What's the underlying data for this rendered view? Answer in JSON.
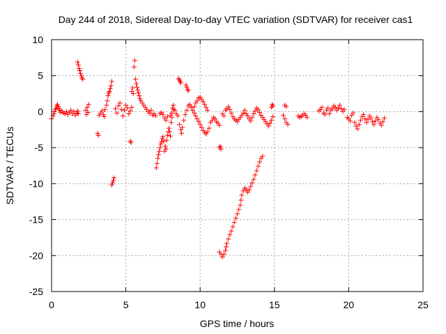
{
  "chart_data": {
    "type": "scatter",
    "title": "Day 244 of 2018, Sidereal Day-to-day VTEC variation (SDTVAR) for receiver cas1",
    "xlabel": "GPS time / hours",
    "ylabel": "SDTVAR / TECUs",
    "xlim": [
      0,
      25
    ],
    "ylim": [
      -25,
      10
    ],
    "xticks": [
      0,
      5,
      10,
      15,
      20,
      25
    ],
    "yticks": [
      -25,
      -20,
      -15,
      -10,
      -5,
      0,
      5,
      10
    ],
    "grid": true,
    "marker": "+",
    "color": "#ff0000",
    "series": [
      {
        "name": "cas1",
        "points": [
          [
            0.0,
            -1.0
          ],
          [
            0.1,
            -0.6
          ],
          [
            0.15,
            -0.3
          ],
          [
            0.2,
            0.0
          ],
          [
            0.25,
            0.3
          ],
          [
            0.3,
            0.5
          ],
          [
            0.35,
            0.8
          ],
          [
            0.4,
            1.0
          ],
          [
            0.45,
            0.7
          ],
          [
            0.5,
            0.4
          ],
          [
            0.55,
            0.2
          ],
          [
            0.6,
            -0.1
          ],
          [
            0.7,
            0.1
          ],
          [
            0.8,
            -0.2
          ],
          [
            0.9,
            -0.3
          ],
          [
            1.0,
            0.0
          ],
          [
            1.1,
            -0.4
          ],
          [
            1.2,
            -0.1
          ],
          [
            1.3,
            0.2
          ],
          [
            1.4,
            -0.3
          ],
          [
            1.5,
            0.0
          ],
          [
            1.6,
            -0.5
          ],
          [
            1.7,
            -0.2
          ],
          [
            1.75,
            0.1
          ],
          [
            1.8,
            -0.3
          ],
          [
            1.75,
            6.9
          ],
          [
            1.8,
            6.5
          ],
          [
            1.85,
            6.0
          ],
          [
            1.9,
            5.7
          ],
          [
            1.95,
            5.3
          ],
          [
            2.0,
            5.0
          ],
          [
            2.05,
            4.7
          ],
          [
            2.1,
            4.5
          ],
          [
            2.3,
            0.2
          ],
          [
            2.4,
            0.6
          ],
          [
            2.5,
            1.0
          ],
          [
            2.35,
            -0.4
          ],
          [
            2.45,
            -0.1
          ],
          [
            3.1,
            -3.0
          ],
          [
            3.15,
            -3.3
          ],
          [
            3.2,
            -0.5
          ],
          [
            3.3,
            -0.2
          ],
          [
            3.4,
            0.1
          ],
          [
            3.5,
            -0.4
          ],
          [
            3.55,
            -0.7
          ],
          [
            3.6,
            0.3
          ],
          [
            3.7,
            0.9
          ],
          [
            3.75,
            1.5
          ],
          [
            3.8,
            2.2
          ],
          [
            3.85,
            2.6
          ],
          [
            3.9,
            2.8
          ],
          [
            3.95,
            3.2
          ],
          [
            4.0,
            3.6
          ],
          [
            4.05,
            4.2
          ],
          [
            4.05,
            -10.2
          ],
          [
            4.1,
            -9.9
          ],
          [
            4.15,
            -9.6
          ],
          [
            4.2,
            -9.2
          ],
          [
            4.3,
            0.4
          ],
          [
            4.4,
            -0.2
          ],
          [
            4.5,
            0.8
          ],
          [
            4.6,
            1.2
          ],
          [
            4.7,
            0.3
          ],
          [
            4.8,
            -0.6
          ],
          [
            4.9,
            0.2
          ],
          [
            5.0,
            0.9
          ],
          [
            5.1,
            0.5
          ],
          [
            5.2,
            -0.3
          ],
          [
            5.3,
            0.1
          ],
          [
            5.4,
            0.6
          ],
          [
            5.3,
            -4.1
          ],
          [
            5.35,
            -4.3
          ],
          [
            5.4,
            2.8
          ],
          [
            5.45,
            3.3
          ],
          [
            5.5,
            2.5
          ],
          [
            5.55,
            6.2
          ],
          [
            5.6,
            7.1
          ],
          [
            5.65,
            4.5
          ],
          [
            5.7,
            3.9
          ],
          [
            5.75,
            3.4
          ],
          [
            5.8,
            3.0
          ],
          [
            5.85,
            2.6
          ],
          [
            5.9,
            2.2
          ],
          [
            5.95,
            1.8
          ],
          [
            6.0,
            1.5
          ],
          [
            6.1,
            1.2
          ],
          [
            6.2,
            0.9
          ],
          [
            6.3,
            0.6
          ],
          [
            6.4,
            0.3
          ],
          [
            6.5,
            0.0
          ],
          [
            6.6,
            -0.2
          ],
          [
            6.7,
            0.2
          ],
          [
            6.8,
            -0.5
          ],
          [
            6.9,
            -0.3
          ],
          [
            7.0,
            -0.6
          ],
          [
            7.05,
            -7.8
          ],
          [
            7.1,
            -7.2
          ],
          [
            7.15,
            -6.5
          ],
          [
            7.2,
            -6.0
          ],
          [
            7.25,
            -5.5
          ],
          [
            7.3,
            -5.0
          ],
          [
            7.35,
            -4.5
          ],
          [
            7.4,
            -4.2
          ],
          [
            7.45,
            -3.8
          ],
          [
            7.5,
            -3.5
          ],
          [
            7.55,
            -4.1
          ],
          [
            7.6,
            -5.5
          ],
          [
            7.65,
            -4.8
          ],
          [
            7.7,
            -5.2
          ],
          [
            7.75,
            -4.0
          ],
          [
            7.8,
            -3.3
          ],
          [
            7.85,
            -2.8
          ],
          [
            7.9,
            -2.3
          ],
          [
            7.95,
            -2.8
          ],
          [
            8.0,
            -3.4
          ],
          [
            8.05,
            -1.5
          ],
          [
            8.1,
            -0.8
          ],
          [
            8.15,
            0.5
          ],
          [
            8.2,
            0.9
          ],
          [
            8.3,
            0.2
          ],
          [
            8.4,
            -0.3
          ],
          [
            8.5,
            -0.6
          ],
          [
            8.0,
            -0.5
          ],
          [
            8.1,
            -0.2
          ],
          [
            8.2,
            0.3
          ],
          [
            7.5,
            -0.4
          ],
          [
            7.6,
            -0.9
          ],
          [
            7.7,
            -1.2
          ],
          [
            7.8,
            -0.7
          ],
          [
            7.3,
            -0.3
          ],
          [
            7.4,
            -0.1
          ],
          [
            8.55,
            4.6
          ],
          [
            8.6,
            4.4
          ],
          [
            8.65,
            4.2
          ],
          [
            8.7,
            4.0
          ],
          [
            8.6,
            -1.8
          ],
          [
            8.7,
            -2.5
          ],
          [
            8.75,
            -3.0
          ],
          [
            8.8,
            -2.2
          ],
          [
            8.9,
            -1.2
          ],
          [
            9.0,
            -0.4
          ],
          [
            9.1,
            0.2
          ],
          [
            9.2,
            0.8
          ],
          [
            9.3,
            1.0
          ],
          [
            9.4,
            0.6
          ],
          [
            9.5,
            0.2
          ],
          [
            9.6,
            -0.2
          ],
          [
            9.7,
            -0.6
          ],
          [
            9.8,
            -1.0
          ],
          [
            9.9,
            -1.4
          ],
          [
            10.0,
            -1.8
          ],
          [
            10.1,
            -2.2
          ],
          [
            10.2,
            -2.6
          ],
          [
            10.3,
            -2.9
          ],
          [
            10.4,
            -3.1
          ],
          [
            10.5,
            -2.8
          ],
          [
            10.6,
            -2.3
          ],
          [
            10.7,
            -1.5
          ],
          [
            9.05,
            3.7
          ],
          [
            9.1,
            3.4
          ],
          [
            9.15,
            3.1
          ],
          [
            9.2,
            2.9
          ],
          [
            9.6,
            0.7
          ],
          [
            9.7,
            1.2
          ],
          [
            9.8,
            1.5
          ],
          [
            9.9,
            1.9
          ],
          [
            10.0,
            2.0
          ],
          [
            10.1,
            1.7
          ],
          [
            10.2,
            1.4
          ],
          [
            10.3,
            1.0
          ],
          [
            10.4,
            0.6
          ],
          [
            10.5,
            0.2
          ],
          [
            10.8,
            -1.2
          ],
          [
            10.9,
            -0.8
          ],
          [
            11.0,
            -1.0
          ],
          [
            11.1,
            -1.4
          ],
          [
            11.2,
            -1.6
          ],
          [
            11.3,
            -1.9
          ],
          [
            11.3,
            -5.0
          ],
          [
            11.35,
            -4.8
          ],
          [
            11.4,
            -5.2
          ],
          [
            11.3,
            -19.5
          ],
          [
            11.4,
            -19.8
          ],
          [
            11.5,
            -20.2
          ],
          [
            11.6,
            -19.8
          ],
          [
            11.7,
            -19.3
          ],
          [
            11.75,
            -18.8
          ],
          [
            11.8,
            -18.3
          ],
          [
            11.9,
            -17.7
          ],
          [
            12.0,
            -17.1
          ],
          [
            12.1,
            -16.6
          ],
          [
            12.2,
            -16.0
          ],
          [
            12.3,
            -15.4
          ],
          [
            12.4,
            -14.8
          ],
          [
            12.5,
            -14.2
          ],
          [
            12.6,
            -13.6
          ],
          [
            12.7,
            -13.0
          ],
          [
            12.75,
            -12.3
          ],
          [
            12.8,
            -11.6
          ],
          [
            12.9,
            -11.0
          ],
          [
            13.0,
            -10.6
          ],
          [
            13.1,
            -10.8
          ],
          [
            13.2,
            -11.2
          ],
          [
            13.3,
            -10.9
          ],
          [
            13.4,
            -10.4
          ],
          [
            13.5,
            -9.9
          ],
          [
            13.6,
            -9.4
          ],
          [
            13.7,
            -8.8
          ],
          [
            13.8,
            -8.2
          ],
          [
            13.9,
            -7.6
          ],
          [
            14.0,
            -7.0
          ],
          [
            14.1,
            -6.5
          ],
          [
            14.2,
            -6.2
          ],
          [
            11.5,
            -0.3
          ],
          [
            11.6,
            -0.6
          ],
          [
            11.7,
            0.2
          ],
          [
            11.8,
            0.4
          ],
          [
            11.9,
            0.7
          ],
          [
            12.0,
            0.3
          ],
          [
            12.1,
            -0.2
          ],
          [
            12.2,
            -0.7
          ],
          [
            12.3,
            -1.0
          ],
          [
            12.4,
            -1.2
          ],
          [
            12.5,
            -1.4
          ],
          [
            12.6,
            -1.1
          ],
          [
            12.7,
            -0.8
          ],
          [
            12.8,
            -0.5
          ],
          [
            12.9,
            -0.2
          ],
          [
            13.0,
            0.2
          ],
          [
            13.1,
            -0.3
          ],
          [
            13.2,
            -0.6
          ],
          [
            13.3,
            -1.0
          ],
          [
            13.4,
            -1.3
          ],
          [
            13.5,
            -0.8
          ],
          [
            13.6,
            -0.3
          ],
          [
            13.7,
            0.1
          ],
          [
            13.8,
            0.5
          ],
          [
            13.9,
            0.3
          ],
          [
            14.0,
            -0.1
          ],
          [
            14.1,
            -0.5
          ],
          [
            14.2,
            -0.8
          ],
          [
            14.3,
            -1.1
          ],
          [
            14.4,
            -1.4
          ],
          [
            14.5,
            -1.7
          ],
          [
            14.6,
            -2.0
          ],
          [
            14.7,
            -1.6
          ],
          [
            14.8,
            -1.2
          ],
          [
            14.9,
            -0.7
          ],
          [
            14.8,
            0.6
          ],
          [
            14.85,
            1.0
          ],
          [
            14.9,
            0.8
          ],
          [
            15.6,
            -0.5
          ],
          [
            15.7,
            -1.0
          ],
          [
            15.8,
            -1.5
          ],
          [
            15.9,
            -1.8
          ],
          [
            15.7,
            0.9
          ],
          [
            15.8,
            0.7
          ],
          [
            16.6,
            -0.6
          ],
          [
            16.7,
            -0.8
          ],
          [
            16.8,
            -0.7
          ],
          [
            16.9,
            -0.5
          ],
          [
            17.0,
            -0.3
          ],
          [
            17.1,
            -0.5
          ],
          [
            17.2,
            -0.8
          ],
          [
            18.0,
            0.1
          ],
          [
            18.1,
            0.3
          ],
          [
            18.2,
            0.6
          ],
          [
            18.3,
            -0.2
          ],
          [
            18.4,
            -0.4
          ],
          [
            18.5,
            0.2
          ],
          [
            18.6,
            0.5
          ],
          [
            18.7,
            -0.3
          ],
          [
            18.8,
            0.2
          ],
          [
            18.9,
            0.4
          ],
          [
            19.0,
            0.8
          ],
          [
            19.1,
            0.6
          ],
          [
            19.2,
            0.2
          ],
          [
            19.3,
            0.5
          ],
          [
            19.4,
            0.9
          ],
          [
            19.5,
            0.4
          ],
          [
            19.6,
            0.0
          ],
          [
            19.7,
            0.3
          ],
          [
            19.9,
            -0.8
          ],
          [
            20.0,
            -1.0
          ],
          [
            20.1,
            -1.3
          ],
          [
            20.2,
            -0.5
          ],
          [
            20.3,
            -0.2
          ],
          [
            20.4,
            -1.5
          ],
          [
            20.5,
            -2.0
          ],
          [
            20.6,
            -2.4
          ],
          [
            20.7,
            -1.8
          ],
          [
            20.8,
            -1.2
          ],
          [
            20.9,
            -0.7
          ],
          [
            21.0,
            -0.4
          ],
          [
            21.1,
            -1.0
          ],
          [
            21.2,
            -1.5
          ],
          [
            21.3,
            -1.1
          ],
          [
            21.4,
            -0.6
          ],
          [
            21.5,
            -0.9
          ],
          [
            21.6,
            -1.4
          ],
          [
            21.7,
            -1.8
          ],
          [
            21.8,
            -1.3
          ],
          [
            21.9,
            -0.8
          ],
          [
            22.0,
            -1.1
          ],
          [
            22.1,
            -1.6
          ],
          [
            22.2,
            -1.9
          ],
          [
            22.3,
            -1.4
          ],
          [
            22.4,
            -0.9
          ]
        ]
      }
    ]
  }
}
